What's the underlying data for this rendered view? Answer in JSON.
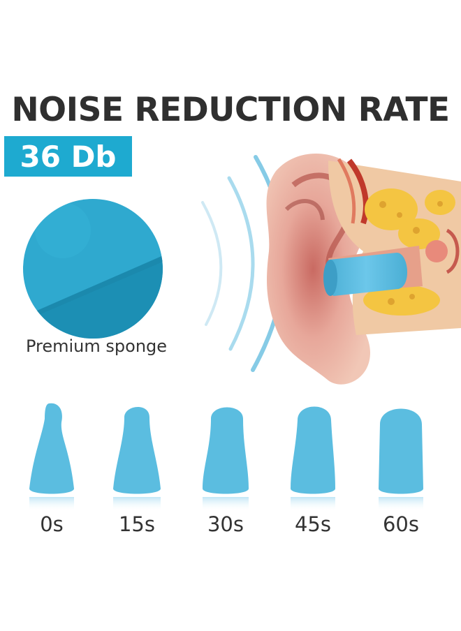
{
  "headline": "NOISE REDUCTION RATE",
  "badge": "36 Db",
  "sponge_label": "Premium sponge",
  "expansion_times": [
    "0s",
    "15s",
    "30s",
    "45s",
    "60s"
  ],
  "colors": {
    "accent": "#1eaad0",
    "sponge": "#3cb0d0",
    "plug": "#5bbde0",
    "headline_text": "#2f2f2f"
  },
  "icons": {
    "sponge": "sponge-closeup",
    "ear": "ear-cross-section",
    "sound_waves": "sound-wave-arcs",
    "earplugs": "earplug-shapes"
  }
}
